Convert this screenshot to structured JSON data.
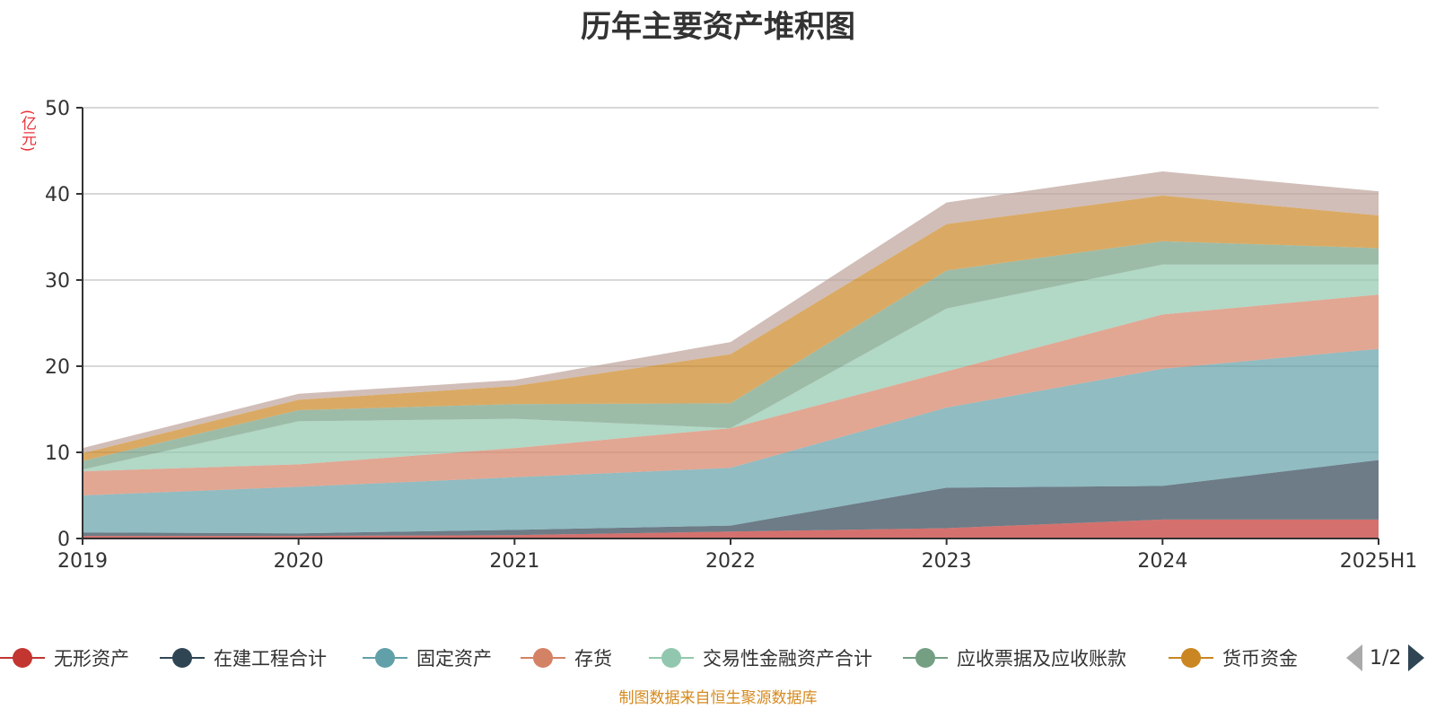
{
  "chart_data": {
    "type": "area",
    "stacked": true,
    "title": "历年主要资产堆积图",
    "unit_label": "(亿元)",
    "x": [
      "2019",
      "2020",
      "2021",
      "2022",
      "2023",
      "2024",
      "2025H1"
    ],
    "ylim": [
      0,
      50
    ],
    "yticks": [
      0,
      10,
      20,
      30,
      40,
      50
    ],
    "grid": true,
    "legend_position": "bottom",
    "series": [
      {
        "name": "无形资产",
        "color": "#c23531",
        "values": [
          0.3,
          0.3,
          0.4,
          0.8,
          1.2,
          2.2,
          2.2
        ]
      },
      {
        "name": "在建工程合计",
        "color": "#2f4554",
        "values": [
          0.4,
          0.3,
          0.6,
          0.7,
          4.7,
          3.9,
          6.9
        ]
      },
      {
        "name": "固定资产",
        "color": "#61a0a8",
        "values": [
          4.3,
          5.4,
          6.1,
          6.7,
          9.3,
          13.6,
          12.9
        ]
      },
      {
        "name": "存货",
        "color": "#d48265",
        "values": [
          2.8,
          2.6,
          3.4,
          4.6,
          4.2,
          6.3,
          6.3
        ]
      },
      {
        "name": "交易性金融资产合计",
        "color": "#91c7ae",
        "values": [
          0.2,
          5.0,
          3.4,
          0.0,
          7.3,
          5.8,
          3.5
        ]
      },
      {
        "name": "应收票据及应收账款",
        "color": "#749f83",
        "values": [
          1.0,
          1.3,
          1.7,
          2.9,
          4.4,
          2.7,
          1.9
        ]
      },
      {
        "name": "货币资金",
        "color": "#ca8622",
        "values": [
          0.9,
          1.2,
          2.1,
          5.7,
          5.4,
          5.3,
          3.8
        ]
      },
      {
        "color": "#bda29a",
        "values": [
          0.6,
          0.7,
          0.7,
          1.4,
          2.5,
          2.8,
          2.8
        ]
      }
    ]
  },
  "legend": {
    "page_text": "1/2"
  },
  "footer": {
    "source": "制图数据来自恒生聚源数据库"
  }
}
